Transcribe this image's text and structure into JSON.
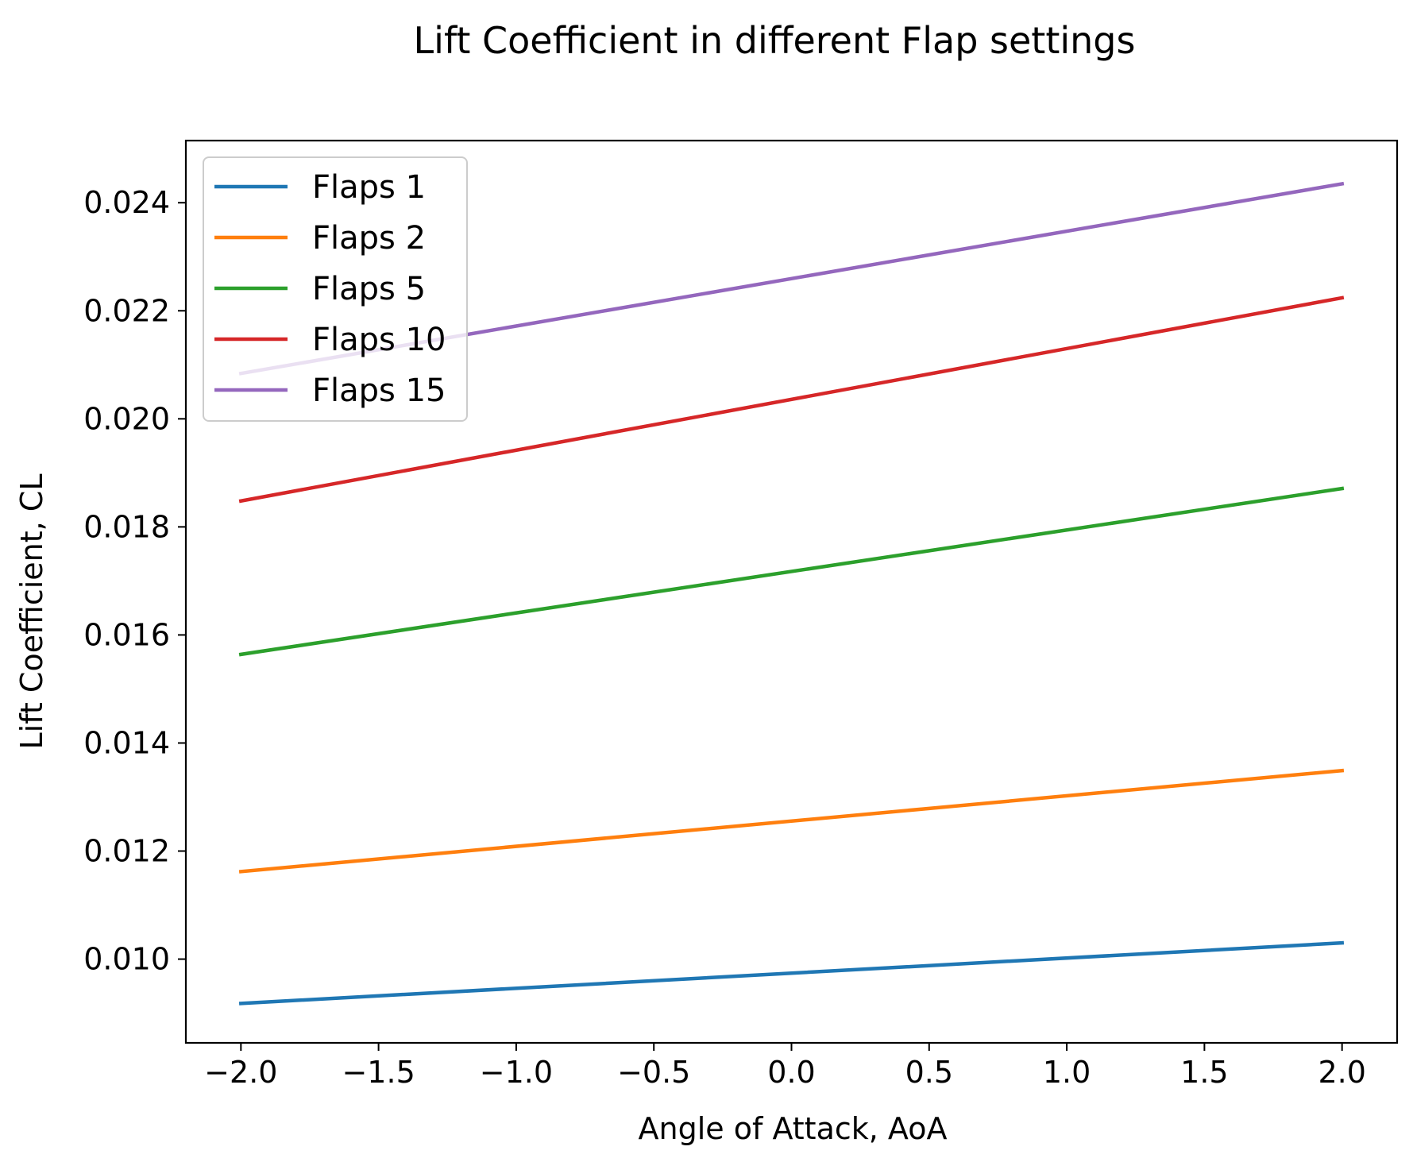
{
  "chart_data": {
    "type": "line",
    "title": "Lift Coefficient in different Flap settings",
    "xlabel": "Angle of Attack, AoA",
    "ylabel": "Lift Coefficient, CL",
    "xlim": [
      -2.2,
      2.2
    ],
    "ylim": [
      0.00845,
      0.02515
    ],
    "x_ticks": [
      -2.0,
      -1.5,
      -1.0,
      -0.5,
      0.0,
      0.5,
      1.0,
      1.5,
      2.0
    ],
    "x_tick_labels": [
      "−2.0",
      "−1.5",
      "−1.0",
      "−0.5",
      "0.0",
      "0.5",
      "1.0",
      "1.5",
      "2.0"
    ],
    "y_ticks": [
      0.01,
      0.012,
      0.014,
      0.016,
      0.018,
      0.02,
      0.022,
      0.024
    ],
    "y_tick_labels": [
      "0.010",
      "0.012",
      "0.014",
      "0.016",
      "0.018",
      "0.020",
      "0.022",
      "0.024"
    ],
    "grid": false,
    "legend_position": "top-left",
    "x": [
      -2.0,
      2.0
    ],
    "series": [
      {
        "name": "Flaps 1",
        "values": [
          0.00918,
          0.0103
        ],
        "color": "#1f77b4"
      },
      {
        "name": "Flaps 2",
        "values": [
          0.01162,
          0.01349
        ],
        "color": "#ff7f0e"
      },
      {
        "name": "Flaps 5",
        "values": [
          0.01564,
          0.01871
        ],
        "color": "#2ca02c"
      },
      {
        "name": "Flaps 10",
        "values": [
          0.01848,
          0.02224
        ],
        "color": "#d62728"
      },
      {
        "name": "Flaps 15",
        "values": [
          0.02084,
          0.02435
        ],
        "color": "#9467bd"
      }
    ]
  }
}
